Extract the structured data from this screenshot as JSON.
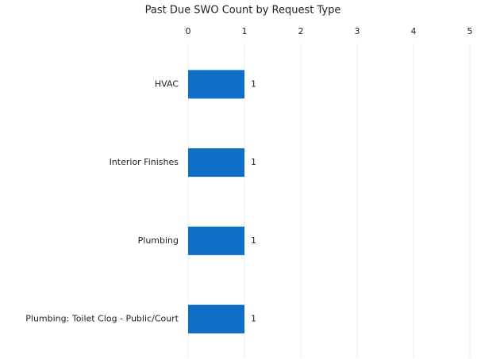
{
  "chart_data": {
    "type": "bar",
    "orientation": "horizontal",
    "title": "Past Due SWO Count by Request Type",
    "categories": [
      "HVAC",
      "Interior Finishes",
      "Plumbing",
      "Plumbing: Toilet Clog - Public/Court"
    ],
    "values": [
      1,
      1,
      1,
      1
    ],
    "color": "#0f6fc6",
    "xlim": [
      0,
      5
    ],
    "xticks": [
      0,
      1,
      2,
      3,
      4,
      5
    ],
    "grid": true,
    "data_labels": true
  }
}
